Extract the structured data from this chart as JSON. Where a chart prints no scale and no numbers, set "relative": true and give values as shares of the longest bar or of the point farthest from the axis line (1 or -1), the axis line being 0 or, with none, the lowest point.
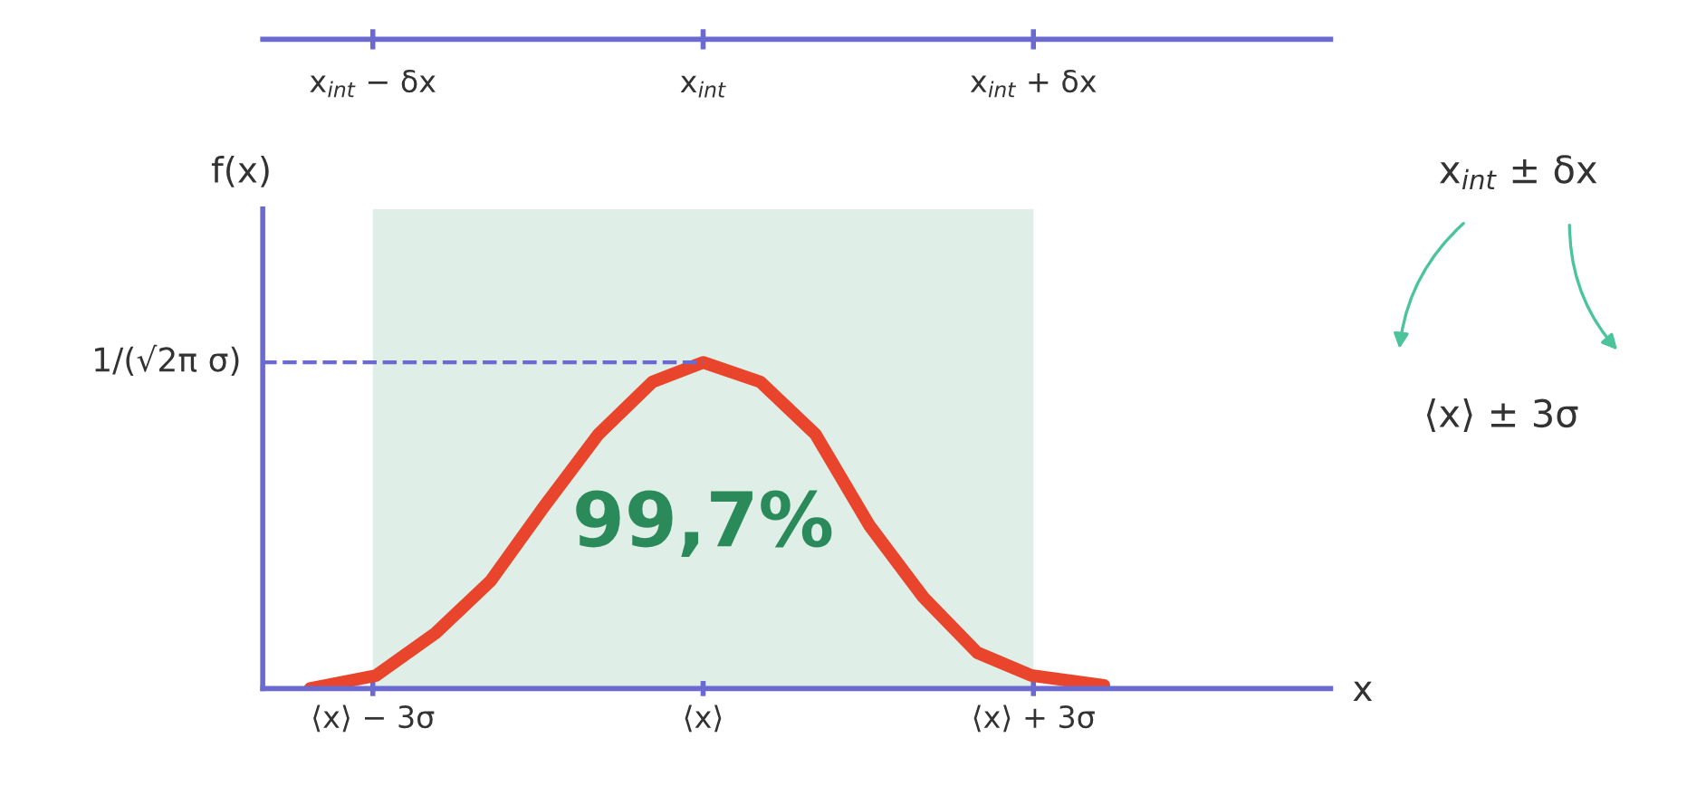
{
  "chart_data": {
    "type": "line",
    "relative": true,
    "ylabel": "f(x)",
    "xlabel": "x",
    "x": [
      -3.57,
      -2.97,
      -2.43,
      -1.93,
      -1.44,
      -0.95,
      -0.46,
      0,
      0.52,
      1.02,
      1.51,
      2.0,
      2.49,
      2.98,
      3.64
    ],
    "series": [
      {
        "color": "#e8452c",
        "values": [
          0,
          0.04,
          0.17,
          0.33,
          0.56,
          0.78,
          0.94,
          1,
          0.94,
          0.78,
          0.5,
          0.28,
          0.11,
          0.04,
          0.01
        ]
      }
    ],
    "xlim": [
      -4,
      5.7
    ],
    "xticks": [
      {
        "value": -3,
        "label": "⟨x⟩ − 3σ"
      },
      {
        "value": 0,
        "label": "⟨x⟩"
      },
      {
        "value": 3,
        "label": "⟨x⟩ + 3σ"
      }
    ],
    "ref_lines": [
      {
        "axis": "y",
        "value": 1,
        "label": "1/(√2π σ)",
        "color": "#6a6ad0",
        "line_style": "dashed"
      }
    ],
    "bands": [
      {
        "axis": "x",
        "from": -3,
        "to": 3,
        "label": "99,7%",
        "color": "#2a8a5a"
      }
    ],
    "annotations": [
      "x$_{int}$ − δx",
      "x$_{int}$",
      "x$_{int}$ + δx",
      "x$_{int}$ ± δx",
      "⟨x⟩ ± 3σ"
    ],
    "grid": false
  }
}
